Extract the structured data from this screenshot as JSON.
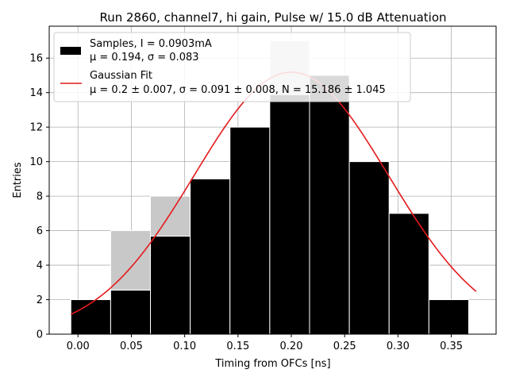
{
  "chart_data": {
    "type": "bar",
    "title": "Run 2860, channel7, hi gain, Pulse w/ 15.0 dB Attenuation",
    "xlabel": "Timing from OFCs [ns]",
    "ylabel": "Entries",
    "xlim": [
      -0.027,
      0.392
    ],
    "ylim": [
      0,
      17.85
    ],
    "xticks": [
      0.0,
      0.05,
      0.1,
      0.15,
      0.2,
      0.25,
      0.3,
      0.35
    ],
    "xtick_labels": [
      "0.00",
      "0.05",
      "0.10",
      "0.15",
      "0.20",
      "0.25",
      "0.30",
      "0.35"
    ],
    "yticks": [
      0,
      2,
      4,
      6,
      8,
      10,
      12,
      14,
      16
    ],
    "yticks_labels": [
      "0",
      "2",
      "4",
      "6",
      "8",
      "10",
      "12",
      "14",
      "16"
    ],
    "grid": true,
    "legend_position": "top-left",
    "bins": [
      {
        "x0": -0.0067,
        "x1": 0.0306,
        "value": 2
      },
      {
        "x0": 0.0306,
        "x1": 0.0679,
        "value": 6
      },
      {
        "x0": 0.0679,
        "x1": 0.1052,
        "value": 8
      },
      {
        "x0": 0.1052,
        "x1": 0.1425,
        "value": 9
      },
      {
        "x0": 0.1425,
        "x1": 0.1798,
        "value": 12
      },
      {
        "x0": 0.1798,
        "x1": 0.2171,
        "value": 17
      },
      {
        "x0": 0.2171,
        "x1": 0.2544,
        "value": 15
      },
      {
        "x0": 0.2544,
        "x1": 0.2917,
        "value": 10
      },
      {
        "x0": 0.2917,
        "x1": 0.329,
        "value": 7
      },
      {
        "x0": 0.329,
        "x1": 0.3663,
        "value": 2
      }
    ],
    "fit": {
      "mu": 0.2,
      "sigma": 0.091,
      "N": 15.186,
      "x_range": [
        -0.0067,
        0.3733
      ],
      "color": "#e41a1c"
    },
    "bar_color": "#000000",
    "bar_highlight_color": "#c8c8c8",
    "legend": {
      "samples_line1": "Samples, I = 0.0903mA",
      "samples_line2": "μ = 0.194, σ = 0.083",
      "fit_line1": "Gaussian Fit",
      "fit_line2": "μ = 0.2 ± 0.007, σ = 0.091 ± 0.008, N = 15.186 ± 1.045"
    }
  }
}
